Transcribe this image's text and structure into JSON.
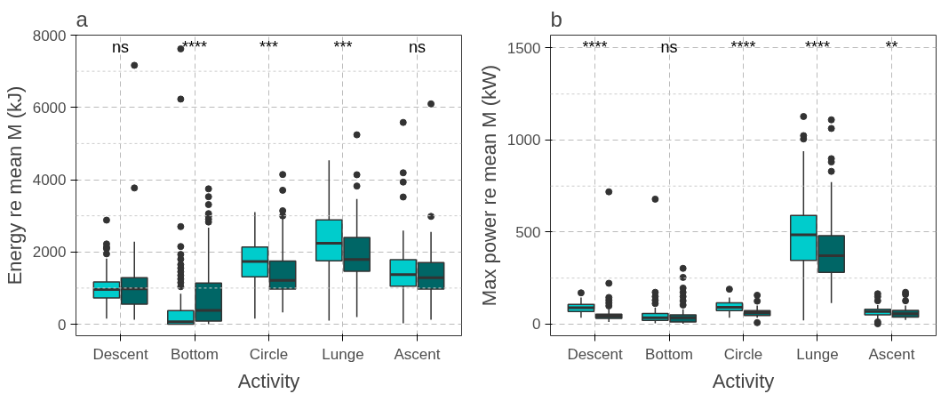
{
  "chart_data": [
    {
      "type": "box",
      "title": "a",
      "xlabel": "Activity",
      "ylabel": "Energy re mean M (kJ)",
      "categories": [
        "Descent",
        "Bottom",
        "Circle",
        "Lunge",
        "Ascent"
      ],
      "ylim": [
        -320,
        8000
      ],
      "yticks": [
        0,
        2000,
        4000,
        6000,
        8000
      ],
      "grid": true,
      "marker": "circle",
      "annotations": [
        "ns",
        "****",
        "***",
        "***",
        "ns"
      ],
      "series": [
        {
          "color": "#00cccc",
          "boxes": [
            {
              "low": 156,
              "q1": 724,
              "median": 958,
              "q3": 1168,
              "high": 1815,
              "outliers": [
                1947,
                2090,
                2130,
                2220,
                2880
              ]
            },
            {
              "low": 0,
              "q1": 0,
              "median": 70,
              "q3": 374,
              "high": 841,
              "outliers": [
                1040,
                1150,
                1250,
                1350,
                1450,
                1550,
                1650,
                1800,
                1930,
                2150,
                2700,
                6230,
                7620
              ]
            },
            {
              "low": 156,
              "q1": 1308,
              "median": 1737,
              "q3": 2134,
              "high": 3100
            },
            {
              "low": 101,
              "q1": 1752,
              "median": 2243,
              "q3": 2889,
              "high": 4533
            },
            {
              "low": 23,
              "q1": 1051,
              "median": 1371,
              "q3": 1783,
              "high": 2593,
              "outliers": [
                3520,
                3933,
                4190,
                5584
              ]
            }
          ]
        },
        {
          "color": "#006666",
          "boxes": [
            {
              "low": 125,
              "q1": 553,
              "median": 981,
              "q3": 1285,
              "high": 2282,
              "outliers": [
                3770,
                7165
              ]
            },
            {
              "low": 0,
              "q1": 86,
              "median": 382,
              "q3": 1137,
              "high": 2671,
              "outliers": [
                2827,
                2905,
                2983,
                3060,
                3310,
                3528,
                3746
              ]
            },
            {
              "low": 327,
              "q1": 974,
              "median": 1215,
              "q3": 1745,
              "high": 2921,
              "outliers": [
                2998,
                3139,
                3707,
                4143
              ]
            },
            {
              "low": 195,
              "q1": 1464,
              "median": 1791,
              "q3": 2399,
              "high": 3466,
              "outliers": [
                3824,
                4136,
                5241
              ]
            },
            {
              "low": 125,
              "q1": 974,
              "median": 1285,
              "q3": 1706,
              "high": 2555,
              "outliers": [
                2983,
                6098
              ]
            }
          ]
        }
      ]
    },
    {
      "type": "box",
      "title": "b",
      "xlabel": "Activity",
      "ylabel": "Max power re mean M (kW)",
      "categories": [
        "Descent",
        "Bottom",
        "Circle",
        "Lunge",
        "Ascent"
      ],
      "ylim": [
        -63,
        1570
      ],
      "yticks": [
        0,
        500,
        1000,
        1500
      ],
      "grid": true,
      "marker": "circle",
      "annotations": [
        "****",
        "ns",
        "****",
        "****",
        "**"
      ],
      "series": [
        {
          "color": "#00cccc",
          "boxes": [
            {
              "low": 35,
              "q1": 69,
              "median": 89,
              "q3": 107,
              "high": 145,
              "outliers": [
                170
              ]
            },
            {
              "low": 5,
              "q1": 20,
              "median": 35,
              "q3": 58,
              "high": 89,
              "outliers": [
                112,
                130,
                150,
                173,
                679
              ]
            },
            {
              "low": 35,
              "q1": 73,
              "median": 92,
              "q3": 116,
              "high": 145,
              "outliers": [
                190
              ]
            },
            {
              "low": 20,
              "q1": 347,
              "median": 485,
              "q3": 590,
              "high": 940,
              "outliers": [
                1006,
                1024,
                1128
              ]
            },
            {
              "low": 28,
              "q1": 50,
              "median": 69,
              "q3": 81,
              "high": 104,
              "outliers": [
                2,
                12,
                127,
                150,
                165
              ]
            }
          ]
        },
        {
          "color": "#006666",
          "boxes": [
            {
              "low": 12,
              "q1": 31,
              "median": 43,
              "q3": 54,
              "high": 81,
              "outliers": [
                99,
                115,
                130,
                145,
                222,
                719
              ]
            },
            {
              "low": 2,
              "q1": 12,
              "median": 35,
              "q3": 50,
              "high": 81,
              "outliers": [
                104,
                127,
                150,
                173,
                196,
                254,
                303
              ]
            },
            {
              "low": 35,
              "q1": 47,
              "median": 63,
              "q3": 73,
              "high": 101,
              "outliers": [
                8,
                125,
                157
              ]
            },
            {
              "low": 115,
              "q1": 281,
              "median": 372,
              "q3": 480,
              "high": 772,
              "outliers": [
                830,
                881,
                899,
                1063,
                1110
              ]
            },
            {
              "low": 23,
              "q1": 38,
              "median": 57,
              "q3": 75,
              "high": 101,
              "outliers": [
                127,
                161,
                173
              ]
            }
          ]
        }
      ]
    }
  ]
}
